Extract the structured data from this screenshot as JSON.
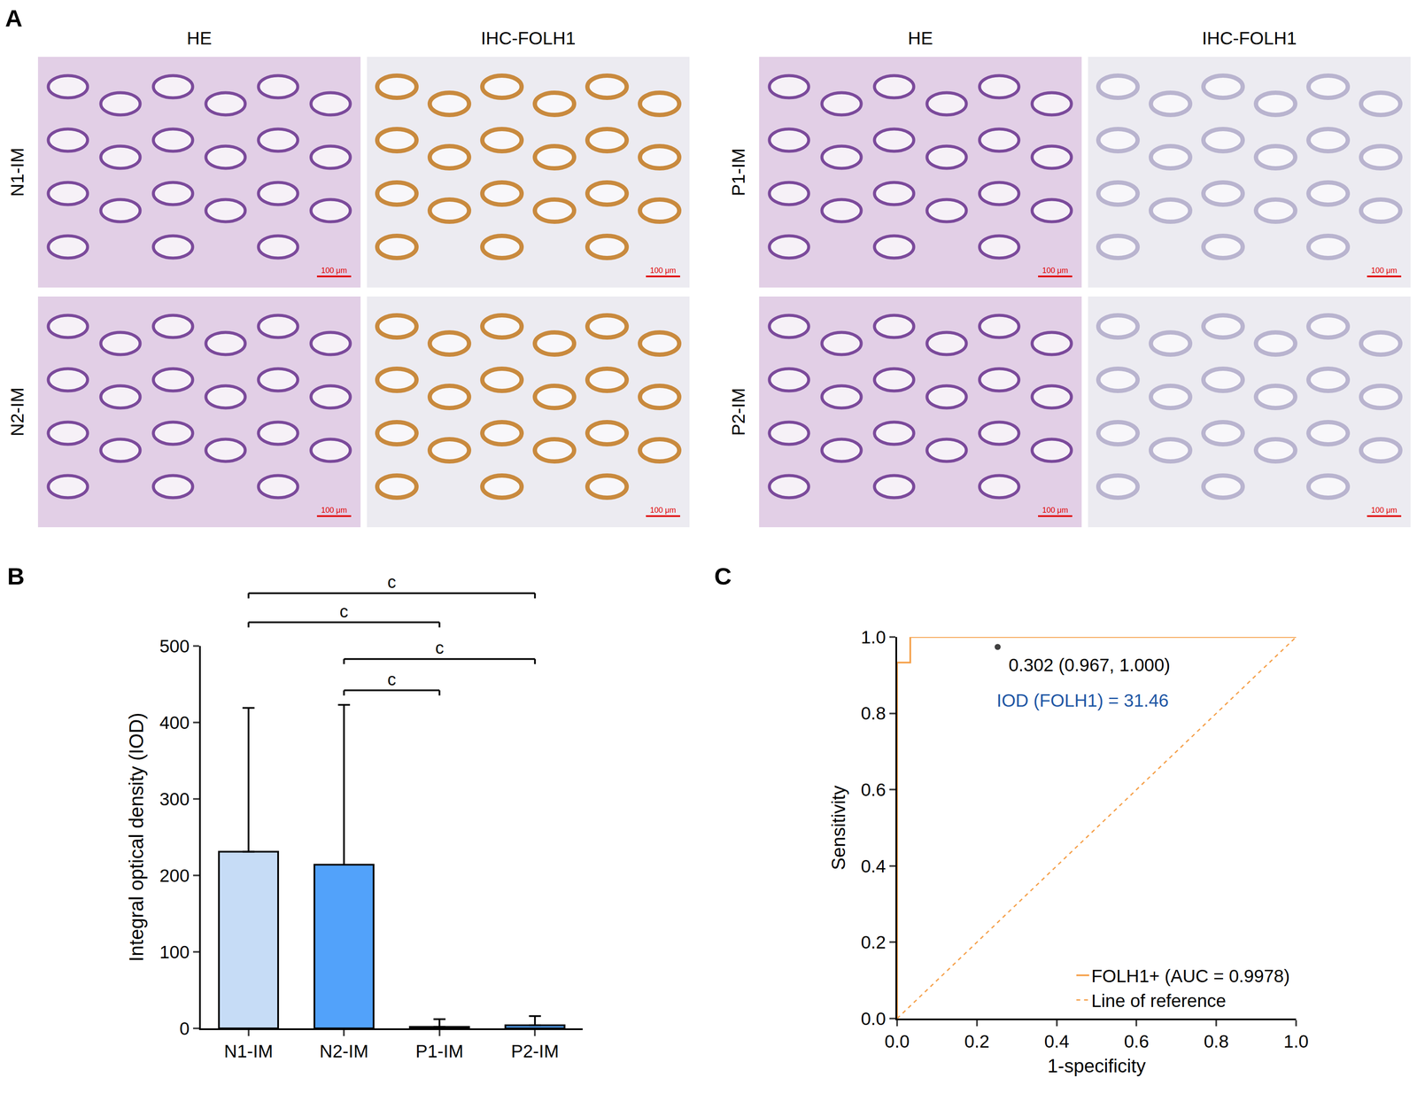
{
  "panel_a": {
    "panel": "A",
    "scale_bar": "100 μm",
    "groups": [
      {
        "columns": [
          "HE",
          "IHC-FOLH1"
        ],
        "rows": [
          "N1-IM",
          "N2-IM"
        ],
        "ihc_color": "#c98a3e"
      },
      {
        "columns": [
          "HE",
          "IHC-FOLH1"
        ],
        "rows": [
          "P1-IM",
          "P2-IM"
        ],
        "ihc_color": "#b9b4cf"
      }
    ]
  },
  "chart_data": [
    {
      "panel": "B",
      "type": "bar",
      "y_label": "Integral optical density (IOD)",
      "categories": [
        "N1-IM",
        "N2-IM",
        "P1-IM",
        "P2-IM"
      ],
      "values": [
        231,
        214,
        2,
        4
      ],
      "error_upper": [
        188,
        209,
        10,
        12
      ],
      "colors": [
        "#c6dcf6",
        "#52a2fa",
        "#c6dcf6",
        "#52a2fa"
      ],
      "ylim": [
        0,
        500
      ],
      "yticks": [
        0,
        100,
        200,
        300,
        400,
        500
      ],
      "grid": false,
      "comparisons": [
        {
          "from": "N1-IM",
          "to": "P2-IM",
          "y": 569,
          "label": "c"
        },
        {
          "from": "N1-IM",
          "to": "P1-IM",
          "y": 531,
          "label": "c"
        },
        {
          "from": "N2-IM",
          "to": "P2-IM",
          "y": 483,
          "label": "c"
        },
        {
          "from": "N2-IM",
          "to": "P1-IM",
          "y": 442,
          "label": "c"
        }
      ]
    },
    {
      "panel": "C",
      "type": "line",
      "x_label": "1-specificity",
      "y_label": "Sensitivity",
      "xlim": [
        0,
        1
      ],
      "ylim": [
        0,
        1
      ],
      "xticks": [
        {
          "value": 0,
          "label": "0.0"
        },
        {
          "value": 0.2,
          "label": "0.2"
        },
        {
          "value": 0.4,
          "label": "0.4"
        },
        {
          "value": 0.6,
          "label": "0.6"
        },
        {
          "value": 0.8,
          "label": "0.8"
        },
        {
          "value": 1,
          "label": "1.0"
        }
      ],
      "yticks": [
        {
          "value": 0,
          "label": "0.0"
        },
        {
          "value": 0.2,
          "label": "0.2"
        },
        {
          "value": 0.4,
          "label": "0.4"
        },
        {
          "value": 0.6,
          "label": "0.6"
        },
        {
          "value": 0.8,
          "label": "0.8"
        },
        {
          "value": 1,
          "label": "1.0"
        }
      ],
      "grid": false,
      "legend": "bottom right",
      "series": [
        {
          "name": "FOLH1+ (AUC = 0.9978)",
          "color": "#f5a04a",
          "line_style": "solid",
          "x": [
            0,
            0,
            0.033,
            0.033,
            1
          ],
          "y": [
            0,
            0.933,
            0.933,
            1,
            1
          ]
        },
        {
          "name": "Line of reference",
          "color": "#f5a04a",
          "line_style": "dash",
          "x": [
            0,
            1
          ],
          "y": [
            0,
            1
          ]
        }
      ],
      "points": [
        {
          "x": 0.252,
          "y": 0.974,
          "label": "0.302 (0.967, 1.000)",
          "color": "#404040",
          "marker": "circle"
        }
      ],
      "annotations": [
        {
          "text": "IOD (FOLH1) = 31.46",
          "x": 0.465,
          "y": 0.834,
          "color": "#1f57a5"
        }
      ]
    }
  ]
}
